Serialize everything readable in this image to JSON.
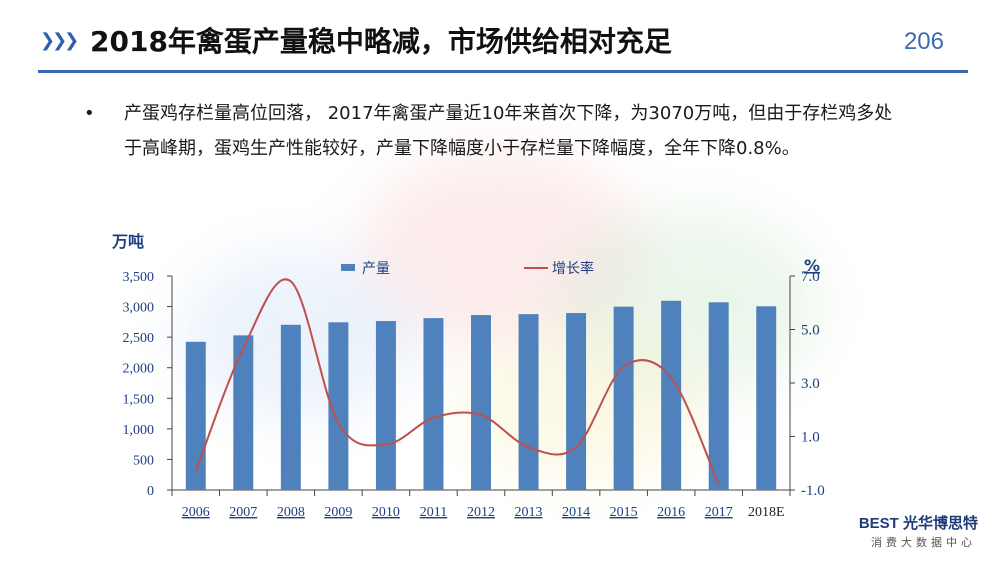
{
  "header": {
    "title": "2018年禽蛋产量稳中略减，市场供给相对充足",
    "page_number": "206"
  },
  "bullet": {
    "text": "产蛋鸡存栏量高位回落， 2017年禽蛋产量近10年来首次下降，为3070万吨，但由于存栏鸡多处于高峰期，蛋鸡生产性能较好，产量下降幅度小于存栏量下降幅度，全年下降0.8%。"
  },
  "logo": {
    "brand": "BEST 光华博思特",
    "tagline": "消费大数据中心"
  },
  "colors": {
    "bar": "#4f81bd",
    "line": "#c0504d",
    "accent": "#2f5fb0"
  },
  "chart_data": {
    "type": "bar+line",
    "categories": [
      "2006",
      "2007",
      "2008",
      "2009",
      "2010",
      "2011",
      "2012",
      "2013",
      "2014",
      "2015",
      "2016",
      "2017",
      "2018E"
    ],
    "series": [
      {
        "name": "产量",
        "type": "bar",
        "axis": "left",
        "values": [
          2424,
          2529,
          2702,
          2743,
          2763,
          2811,
          2861,
          2876,
          2894,
          2999,
          3095,
          3070,
          3005
        ]
      },
      {
        "name": "增长率",
        "type": "line",
        "axis": "right",
        "values": [
          -0.3,
          4.3,
          6.8,
          1.5,
          0.7,
          1.7,
          1.8,
          0.6,
          0.6,
          3.6,
          3.2,
          -0.8,
          null
        ]
      }
    ],
    "left_axis": {
      "label": "万吨",
      "ylim": [
        0,
        3500
      ],
      "ticks": [
        "0",
        "500",
        "1,000",
        "1,500",
        "2,000",
        "2,500",
        "3,000",
        "3,500"
      ]
    },
    "right_axis": {
      "label": "%",
      "ylim": [
        -1.0,
        7.0
      ],
      "ticks": [
        "-1.0",
        "1.0",
        "3.0",
        "5.0",
        "7.0"
      ],
      "tick_values": [
        -1,
        1,
        3,
        5,
        7
      ]
    },
    "legend_position": "top-center"
  }
}
